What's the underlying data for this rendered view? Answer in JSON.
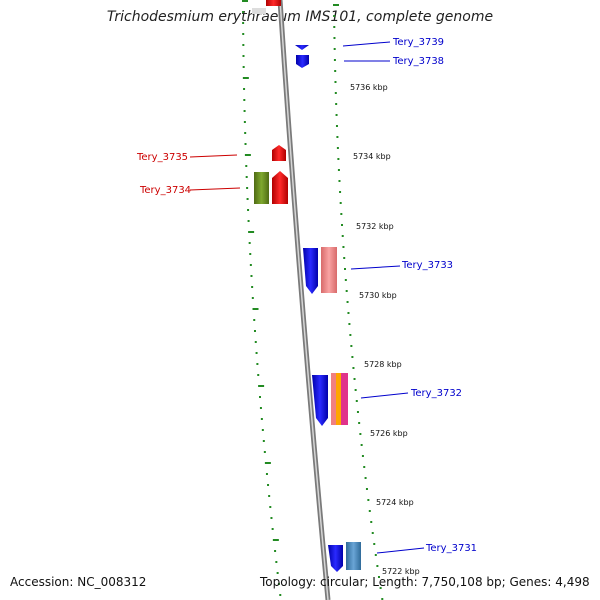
{
  "title": "Trichodesmium erythraeum IMS101, complete genome",
  "accession": "Accession: NC_008312",
  "topology": "Topology: circular; Length: 7,750,108 bp; Genes: 4,498",
  "kbp_labels": [
    "5736 kbp",
    "5734 kbp",
    "5732 kbp",
    "5730 kbp",
    "5728 kbp",
    "5726 kbp",
    "5724 kbp",
    "5722 kbp"
  ],
  "genes": [
    {
      "name": "Tery_3739",
      "strand": "reverse",
      "color": "#0000cc"
    },
    {
      "name": "Tery_3738",
      "strand": "reverse",
      "color": "#0000cc"
    },
    {
      "name": "Tery_3735",
      "strand": "forward",
      "color": "#cc0000"
    },
    {
      "name": "Tery_3734",
      "strand": "forward",
      "color": "#cc0000"
    },
    {
      "name": "Tery_3733",
      "strand": "reverse",
      "color": "#0000cc"
    },
    {
      "name": "Tery_3732",
      "strand": "reverse",
      "color": "#0000cc"
    },
    {
      "name": "Tery_3731",
      "strand": "reverse",
      "color": "#0000cc"
    }
  ],
  "colors": {
    "forward_gene": "#ee1111",
    "reverse_gene": "#1111ee",
    "cog_green": "#6b8e23",
    "cog_pink": "#f08080",
    "cog_orange": "#ffa500",
    "cog_magenta": "#e0338a",
    "cog_steelblue": "#4682b4",
    "backbone": "#888888",
    "gc_skew": "#228b22"
  }
}
